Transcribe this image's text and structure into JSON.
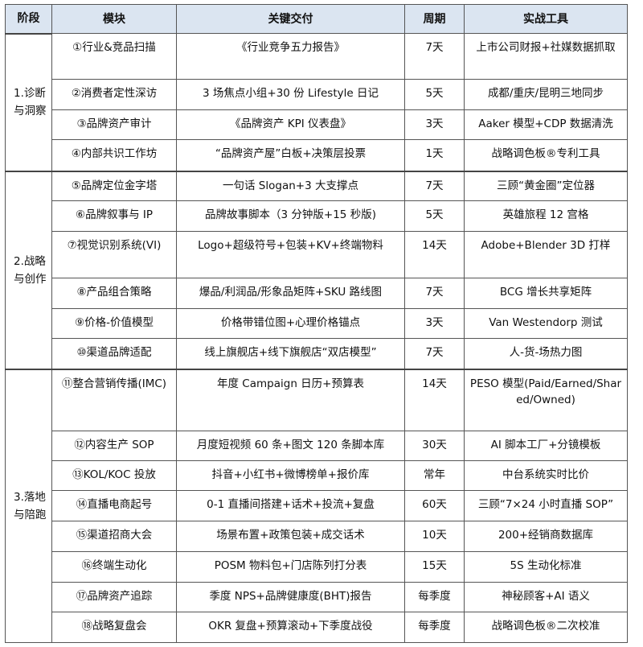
{
  "headers": [
    "阶段",
    "模块",
    "关键交付",
    "周期",
    "实战工具"
  ],
  "stages": [
    {
      "label": "1.诊断与洞察",
      "rows": [
        {
          "module": "①行业&竞品扫描",
          "deliverable": "《行业竞争五力报告》",
          "period": "7天",
          "tool": "上市公司财报+社媒数据抓取"
        },
        {
          "module": "②消费者定性深访",
          "deliverable": "3 场焦点小组+30 份 Lifestyle 日记",
          "period": "5天",
          "tool": "成都/重庆/昆明三地同步"
        },
        {
          "module": "③品牌资产审计",
          "deliverable": "《品牌资产 KPI 仪表盘》",
          "period": "3天",
          "tool": "Aaker 模型+CDP 数据清洗"
        },
        {
          "module": "④内部共识工作坊",
          "deliverable": "“品牌资产屋”白板+决策层投票",
          "period": "1天",
          "tool": "战略调色板®专利工具"
        }
      ]
    },
    {
      "label": "2.战略与创作",
      "rows": [
        {
          "module": "⑤品牌定位金字塔",
          "deliverable": "一句话 Slogan+3 大支撑点",
          "period": "7天",
          "tool": "三顾“黄金圈”定位器"
        },
        {
          "module": "⑥品牌叙事与 IP",
          "deliverable": "品牌故事脚本（3 分钟版+15 秒版)",
          "period": "5天",
          "tool": "英雄旅程 12 宫格"
        },
        {
          "module": "⑦视觉识别系统(VI)",
          "deliverable": "Logo+超级符号+包装+KV+终端物料",
          "period": "14天",
          "tool": "Adobe+Blender 3D 打样"
        },
        {
          "module": "⑧产品组合策略",
          "deliverable": "爆品/利润品/形象品矩阵+SKU 路线图",
          "period": "7天",
          "tool": "BCG 增长共享矩阵"
        },
        {
          "module": "⑨价格-价值模型",
          "deliverable": "价格带错位图+心理价格锚点",
          "period": "3天",
          "tool": "Van Westendorp 测试"
        },
        {
          "module": "⑩渠道品牌适配",
          "deliverable": "线上旗舰店+线下旗舰店“双店模型”",
          "period": "7天",
          "tool": "人-货-场热力图"
        }
      ]
    },
    {
      "label": "3.落地与陪跑",
      "rows": [
        {
          "module": "⑪整合营销传播(IMC)",
          "deliverable": "年度 Campaign 日历+预算表",
          "period": "14天",
          "tool": "PESO 模型(Paid/Earned/Shared/Owned)"
        },
        {
          "module": "⑫内容生产 SOP",
          "deliverable": "月度短视频 60 条+图文 120 条脚本库",
          "period": "30天",
          "tool": "AI 脚本工厂+分镜模板"
        },
        {
          "module": "⑬KOL/KOC 投放",
          "deliverable": "抖音+小红书+微博榜单+报价库",
          "period": "常年",
          "tool": "中台系统实时比价"
        },
        {
          "module": "⑭直播电商起号",
          "deliverable": "0-1 直播间搭建+话术+投流+复盘",
          "period": "60天",
          "tool": "三顾“7×24 小时直播 SOP”"
        },
        {
          "module": "⑮渠道招商大会",
          "deliverable": "场景布置+政策包装+成交话术",
          "period": "10天",
          "tool": "200+经销商数据库"
        },
        {
          "module": "⑯终端生动化",
          "deliverable": "POSM 物料包+门店陈列打分表",
          "period": "15天",
          "tool": "5S 生动化标准"
        },
        {
          "module": "⑰品牌资产追踪",
          "deliverable": "季度 NPS+品牌健康度(BHT)报告",
          "period": "每季度",
          "tool": "神秘顾客+AI 语义"
        },
        {
          "module": "⑱战略复盘会",
          "deliverable": "OKR 复盘+预算滚动+下季度战役",
          "period": "每季度",
          "tool": "战略调色板®二次校准"
        }
      ]
    }
  ],
  "colors": {
    "header_bg": "#dbe5f1",
    "border": "#555555"
  }
}
